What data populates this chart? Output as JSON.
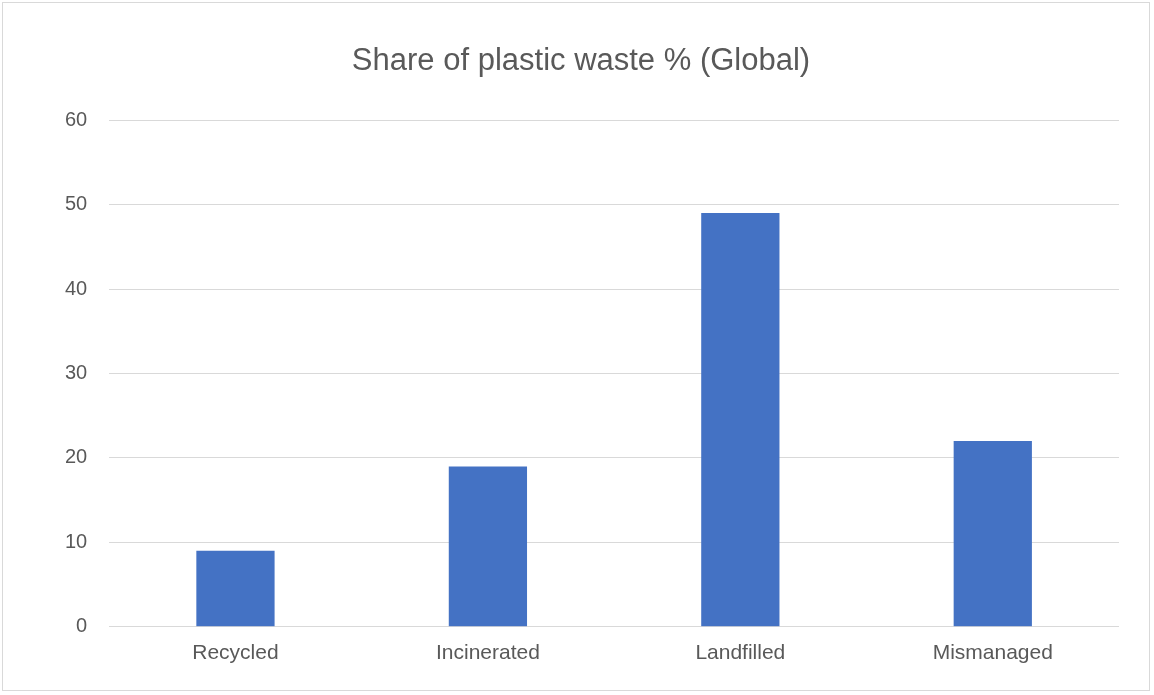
{
  "chart_data": {
    "type": "bar",
    "title": "Share of plastic waste % (Global)",
    "categories": [
      "Recycled",
      "Incinerated",
      "Landfilled",
      "Mismanaged"
    ],
    "values": [
      9,
      19,
      49,
      22
    ],
    "color": "#4472c4",
    "ylim": [
      0,
      60
    ],
    "yticks": [
      0,
      10,
      20,
      30,
      40,
      50,
      60
    ],
    "grid": "y",
    "legend": false
  }
}
